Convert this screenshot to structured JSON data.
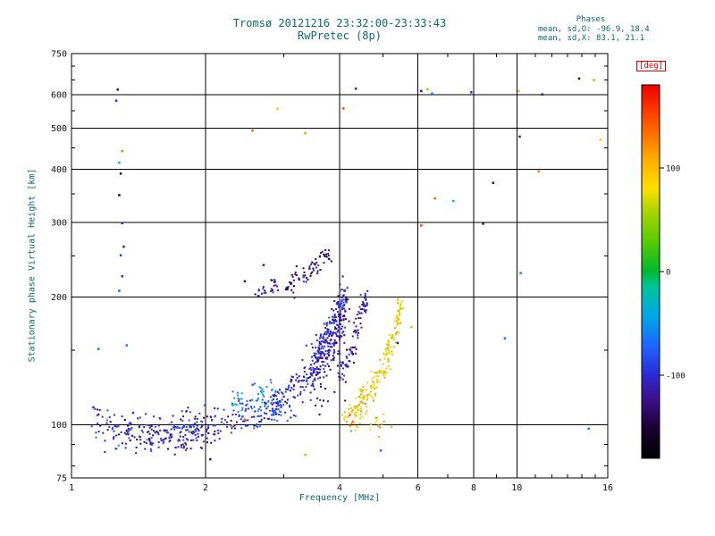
{
  "title": {
    "line1": "Tromsø 20121216 23:32:00-23:33:43",
    "line2": "RwPretec (8p)"
  },
  "stats": {
    "header": "Phases",
    "o_line": "mean, sd,O: -96.9, 18.4",
    "x_line": "mean, sd,X:  83.1, 21.1"
  },
  "axes": {
    "x_label": "Frequency [MHz]",
    "y_label": "Stationary phase Virtual Height [km]"
  },
  "colorbar": {
    "label": "[deg]",
    "min": -180,
    "max": 180,
    "ticks": [
      {
        "value": 100,
        "label": "100"
      },
      {
        "value": 0,
        "label": "0"
      },
      {
        "value": -100,
        "label": "-100"
      }
    ],
    "stops": [
      [
        0.0,
        "#000000"
      ],
      [
        0.08,
        "#1a0033"
      ],
      [
        0.16,
        "#3d0f8a"
      ],
      [
        0.222,
        "#2a2ad4"
      ],
      [
        0.3,
        "#1f64ff"
      ],
      [
        0.38,
        "#00a8e8"
      ],
      [
        0.46,
        "#00c49a"
      ],
      [
        0.5,
        "#00b830"
      ],
      [
        0.58,
        "#58cc02"
      ],
      [
        0.66,
        "#a8d400"
      ],
      [
        0.722,
        "#ffe000"
      ],
      [
        0.8,
        "#ffae00"
      ],
      [
        0.9,
        "#ff5400"
      ],
      [
        1.0,
        "#f00000"
      ]
    ]
  },
  "chart_data": {
    "type": "scatter",
    "title": "Tromsø 20121216 23:32:00-23:33:43 / RwPretec (8p)",
    "xlabel": "Frequency [MHz]",
    "ylabel": "Stationary phase Virtual Height [km]",
    "color_label": "[deg]",
    "x_axis": {
      "scale": "log",
      "min": 1,
      "max": 16,
      "major_ticks": [
        1,
        2,
        4,
        6,
        8,
        10,
        16
      ],
      "minor_ticks": [
        3,
        5,
        7,
        9,
        11,
        12,
        13,
        14,
        15
      ],
      "gridlines": [
        2,
        4,
        6,
        8,
        10
      ]
    },
    "y_axis": {
      "scale": "log",
      "min": 75,
      "max": 750,
      "major_ticks": [
        75,
        100,
        200,
        300,
        400,
        500,
        600,
        750
      ],
      "minor_ticks": [
        80,
        90,
        150,
        250,
        350,
        450,
        550,
        650,
        700
      ],
      "gridlines": [
        100,
        200,
        300,
        400,
        500,
        600
      ]
    },
    "color_axis": {
      "min": -180,
      "max": 180
    },
    "phase_stats": {
      "o_mean": -96.9,
      "o_sd": 18.4,
      "x_mean": 83.1,
      "x_sd": 21.1
    },
    "seed": 20121216,
    "marker_px": 2,
    "clusters": [
      {
        "name": "o-trace-low",
        "polyline": [
          [
            1.12,
            99
          ],
          [
            1.35,
            97
          ],
          [
            1.6,
            95
          ],
          [
            1.9,
            99
          ],
          [
            2.2,
            103
          ],
          [
            2.5,
            106
          ],
          [
            2.8,
            110
          ],
          [
            3.0,
            113
          ]
        ],
        "h_spread": 5,
        "count": 330,
        "phase_mean": -100,
        "phase_sd": 18
      },
      {
        "name": "o-trace-low2",
        "polyline": [
          [
            1.5,
            94
          ],
          [
            1.8,
            93
          ],
          [
            2.1,
            96
          ]
        ],
        "h_spread": 3,
        "count": 80,
        "phase_mean": -110,
        "phase_sd": 12
      },
      {
        "name": "o-cusp",
        "polyline": [
          [
            3.0,
            115
          ],
          [
            3.2,
            122
          ],
          [
            3.4,
            132
          ],
          [
            3.55,
            142
          ],
          [
            3.7,
            155
          ],
          [
            3.85,
            170
          ],
          [
            3.95,
            185
          ],
          [
            4.05,
            197
          ]
        ],
        "h_spread": 8,
        "count": 220,
        "phase_mean": -105,
        "phase_sd": 15
      },
      {
        "name": "o-spread",
        "polyline": [
          [
            3.5,
            125
          ],
          [
            3.7,
            140
          ],
          [
            3.9,
            160
          ],
          [
            4.05,
            180
          ],
          [
            4.15,
            200
          ]
        ],
        "h_spread": 14,
        "count": 160,
        "phase_mean": -115,
        "phase_sd": 18
      },
      {
        "name": "o-second",
        "polyline": [
          [
            4.0,
            130
          ],
          [
            4.15,
            140
          ],
          [
            4.3,
            155
          ],
          [
            4.4,
            170
          ],
          [
            4.5,
            188
          ],
          [
            4.55,
            200
          ]
        ],
        "h_spread": 6,
        "count": 90,
        "phase_mean": -110,
        "phase_sd": 15
      },
      {
        "name": "x-trace",
        "polyline": [
          [
            4.35,
            112
          ],
          [
            4.6,
            118
          ],
          [
            4.85,
            127
          ],
          [
            5.05,
            138
          ],
          [
            5.2,
            152
          ],
          [
            5.35,
            168
          ],
          [
            5.45,
            185
          ],
          [
            5.5,
            196
          ]
        ],
        "h_spread": 5,
        "count": 150,
        "phase_mean": 83,
        "phase_sd": 21
      },
      {
        "name": "x-low",
        "polyline": [
          [
            4.1,
            104
          ],
          [
            4.35,
            107
          ],
          [
            4.6,
            110
          ]
        ],
        "h_spread": 4,
        "count": 40,
        "phase_mean": 95,
        "phase_sd": 25
      },
      {
        "name": "x-bottom",
        "polyline": [
          [
            4.2,
            99
          ],
          [
            4.8,
            100
          ],
          [
            5.2,
            101
          ]
        ],
        "h_spread": 3,
        "count": 20,
        "phase_mean": 90,
        "phase_sd": 30
      },
      {
        "name": "upper-cluster",
        "polyline": [
          [
            3.05,
            212
          ],
          [
            3.25,
            220
          ],
          [
            3.45,
            232
          ],
          [
            3.65,
            245
          ],
          [
            3.8,
            258
          ]
        ],
        "h_spread": 7,
        "count": 70,
        "phase_mean": -125,
        "phase_sd": 20
      },
      {
        "name": "mid-cyan",
        "polyline": [
          [
            2.3,
            112
          ],
          [
            2.6,
            116
          ],
          [
            2.9,
            120
          ]
        ],
        "h_spread": 5,
        "count": 50,
        "phase_mean": -60,
        "phase_sd": 15
      },
      {
        "name": "e-patch",
        "polyline": [
          [
            2.55,
            205
          ],
          [
            2.75,
            210
          ],
          [
            2.9,
            215
          ]
        ],
        "h_spread": 5,
        "count": 25,
        "phase_mean": -120,
        "phase_sd": 25
      }
    ],
    "outliers": [
      [
        1.27,
        617,
        -130
      ],
      [
        1.26,
        581,
        -100
      ],
      [
        1.3,
        442,
        130
      ],
      [
        1.28,
        415,
        -40
      ],
      [
        1.29,
        391,
        -135
      ],
      [
        1.28,
        348,
        -150
      ],
      [
        1.3,
        299,
        -120
      ],
      [
        1.31,
        263,
        -110
      ],
      [
        1.29,
        251,
        -90
      ],
      [
        1.3,
        224,
        -100
      ],
      [
        1.28,
        207,
        -80
      ],
      [
        1.33,
        154,
        -60
      ],
      [
        1.15,
        151,
        -70
      ],
      [
        1.12,
        110,
        -100
      ],
      [
        2.3,
        100,
        100
      ],
      [
        2.45,
        103,
        130
      ],
      [
        1.85,
        97,
        85
      ],
      [
        2.55,
        494,
        145
      ],
      [
        2.9,
        556,
        95
      ],
      [
        3.35,
        487,
        120
      ],
      [
        4.08,
        557,
        150
      ],
      [
        4.35,
        620,
        -110
      ],
      [
        2.45,
        218,
        -130
      ],
      [
        2.7,
        238,
        -120
      ],
      [
        6.1,
        612,
        -130
      ],
      [
        6.3,
        618,
        45
      ],
      [
        6.45,
        604,
        -60
      ],
      [
        7.9,
        608,
        -100
      ],
      [
        10.1,
        612,
        100
      ],
      [
        10.15,
        478,
        -120
      ],
      [
        10.2,
        228,
        -60
      ],
      [
        11.4,
        601,
        -120
      ],
      [
        11.2,
        396,
        130
      ],
      [
        13.8,
        655,
        -140
      ],
      [
        14.9,
        650,
        45
      ],
      [
        15.4,
        470,
        90
      ],
      [
        6.1,
        295,
        150
      ],
      [
        6.55,
        342,
        140
      ],
      [
        7.2,
        337,
        -20
      ],
      [
        8.4,
        298,
        -130
      ],
      [
        8.85,
        372,
        -130
      ],
      [
        9.4,
        160,
        -70
      ],
      [
        5.4,
        156,
        -120
      ],
      [
        5.8,
        170,
        60
      ],
      [
        14.5,
        98,
        -60
      ],
      [
        2.05,
        83,
        -130
      ],
      [
        3.35,
        85,
        110
      ],
      [
        4.95,
        87,
        -70
      ]
    ]
  }
}
